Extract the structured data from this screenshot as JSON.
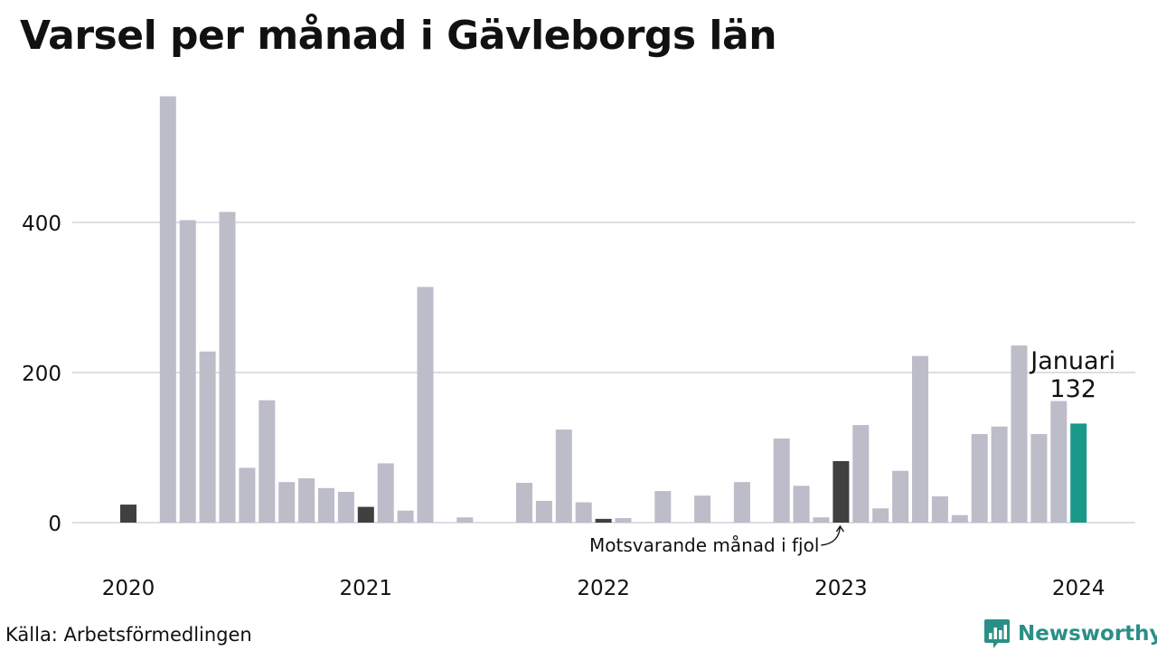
{
  "title": "Varsel per månad i Gävleborgs län",
  "source": "Källa: Arbetsförmedlingen",
  "brand": {
    "name": "Newsworthy",
    "icon": "bar-chart-speech-bubble-icon"
  },
  "colors": {
    "bar": "#bdbcc9",
    "previous_year": "#404040",
    "current": "#1a988a",
    "grid": "#dedde4",
    "brand": "#2a8f86"
  },
  "chart_data": {
    "type": "bar",
    "title": "Varsel per månad i Gävleborgs län",
    "xlabel": "",
    "ylabel": "",
    "ylim": [
      0,
      570
    ],
    "y_ticks": [
      0,
      200,
      400
    ],
    "x_tick_labels": [
      "2020",
      "2021",
      "2022",
      "2023",
      "2024"
    ],
    "grid": true,
    "categories": [
      "2020-01",
      "2020-02",
      "2020-03",
      "2020-04",
      "2020-05",
      "2020-06",
      "2020-07",
      "2020-08",
      "2020-09",
      "2020-10",
      "2020-11",
      "2020-12",
      "2021-01",
      "2021-02",
      "2021-03",
      "2021-04",
      "2021-05",
      "2021-06",
      "2021-07",
      "2021-08",
      "2021-09",
      "2021-10",
      "2021-11",
      "2021-12",
      "2022-01",
      "2022-02",
      "2022-03",
      "2022-04",
      "2022-05",
      "2022-06",
      "2022-07",
      "2022-08",
      "2022-09",
      "2022-10",
      "2022-11",
      "2022-12",
      "2023-01",
      "2023-02",
      "2023-03",
      "2023-04",
      "2023-05",
      "2023-06",
      "2023-07",
      "2023-08",
      "2023-09",
      "2023-10",
      "2023-11",
      "2023-12",
      "2024-01"
    ],
    "values": [
      24,
      0,
      568,
      403,
      228,
      414,
      73,
      163,
      54,
      59,
      46,
      41,
      21,
      79,
      16,
      314,
      0,
      7,
      0,
      0,
      53,
      29,
      124,
      27,
      5,
      6,
      0,
      42,
      0,
      36,
      0,
      54,
      0,
      112,
      49,
      7,
      82,
      130,
      19,
      69,
      222,
      35,
      10,
      118,
      128,
      236,
      118,
      162,
      132
    ],
    "highlight": {
      "previous_year_months": [
        "2020-01",
        "2021-01",
        "2022-01",
        "2023-01"
      ],
      "current_month": "2024-01"
    },
    "annotations": {
      "current_label": "Januari",
      "current_value": "132",
      "previous_year_note": "Motsvarande månad i fjol"
    }
  }
}
